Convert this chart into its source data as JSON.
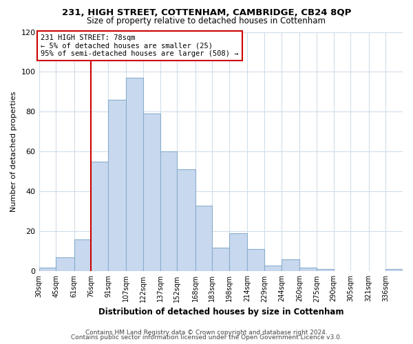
{
  "title1": "231, HIGH STREET, COTTENHAM, CAMBRIDGE, CB24 8QP",
  "title2": "Size of property relative to detached houses in Cottenham",
  "xlabel": "Distribution of detached houses by size in Cottenham",
  "ylabel": "Number of detached properties",
  "bin_edges": [
    30,
    45,
    61,
    76,
    91,
    107,
    122,
    137,
    152,
    168,
    183,
    198,
    214,
    229,
    244,
    260,
    275,
    290,
    305,
    321,
    336,
    351
  ],
  "bar_heights": [
    2,
    7,
    16,
    55,
    86,
    97,
    79,
    60,
    51,
    33,
    12,
    19,
    11,
    3,
    6,
    2,
    1,
    0,
    0,
    0,
    1
  ],
  "bar_color": "#c8d8ee",
  "bar_edge_color": "#88aece",
  "redline_x": 76,
  "annotation_line1": "231 HIGH STREET: 78sqm",
  "annotation_line2": "← 5% of detached houses are smaller (25)",
  "annotation_line3": "95% of semi-detached houses are larger (508) →",
  "annotation_box_color": "#ffffff",
  "annotation_border_color": "#cc0000",
  "redline_color": "#cc0000",
  "ylim": [
    0,
    120
  ],
  "yticks": [
    0,
    20,
    40,
    60,
    80,
    100,
    120
  ],
  "tick_labels": [
    "30sqm",
    "45sqm",
    "61sqm",
    "76sqm",
    "91sqm",
    "107sqm",
    "122sqm",
    "137sqm",
    "152sqm",
    "168sqm",
    "183sqm",
    "198sqm",
    "214sqm",
    "229sqm",
    "244sqm",
    "260sqm",
    "275sqm",
    "290sqm",
    "305sqm",
    "321sqm",
    "336sqm"
  ],
  "footer1": "Contains HM Land Registry data © Crown copyright and database right 2024.",
  "footer2": "Contains public sector information licensed under the Open Government Licence v3.0.",
  "bg_color": "#ffffff",
  "plot_bg_color": "#ffffff",
  "grid_color": "#d0dce8"
}
